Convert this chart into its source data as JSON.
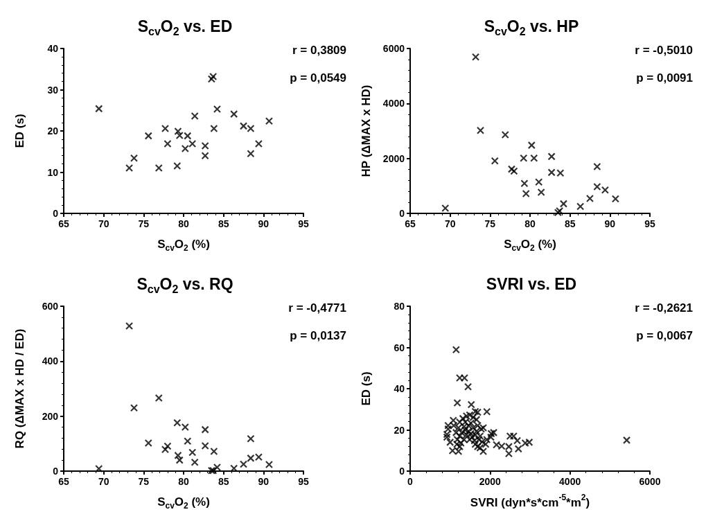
{
  "chart_data": [
    {
      "type": "scatter",
      "title": "S$_{cv}$O$_{2}$ vs. ED",
      "xlabel": "S$_{cv}$O$_{2}$ (%)",
      "ylabel": "ED (s)",
      "xlim": [
        65,
        95
      ],
      "xticks": [
        65,
        70,
        75,
        80,
        85,
        90,
        95
      ],
      "ylim": [
        0,
        40
      ],
      "yticks": [
        0,
        10,
        20,
        30,
        40
      ],
      "marker": "cross",
      "annotations": [
        "r = 0,3809",
        "p = 0,0549"
      ],
      "series": [
        {
          "color": "#000000",
          "x": [
            69.4,
            73.2,
            73.8,
            75.6,
            76.9,
            77.7,
            78.0,
            79.2,
            79.3,
            79.5,
            80.2,
            80.5,
            81.1,
            81.4,
            82.7,
            82.7,
            83.5,
            83.7,
            83.8,
            84.2,
            86.3,
            87.5,
            88.4,
            88.4,
            89.4,
            90.7
          ],
          "values": [
            25.4,
            11.0,
            13.4,
            18.8,
            11.0,
            20.6,
            16.9,
            11.5,
            19.9,
            18.9,
            15.7,
            18.8,
            16.9,
            23.6,
            16.4,
            14.0,
            32.6,
            33.2,
            20.6,
            25.3,
            24.1,
            21.2,
            20.6,
            14.5,
            16.9,
            22.4
          ]
        }
      ]
    },
    {
      "type": "scatter",
      "title": "S$_{cv}$O$_{2}$ vs. HP",
      "xlabel": "S$_{cv}$O$_{2}$ (%)",
      "ylabel": "HP (ΔMAX x HD)",
      "xlim": [
        65,
        95
      ],
      "xticks": [
        65,
        70,
        75,
        80,
        85,
        90,
        95
      ],
      "ylim": [
        0,
        6000
      ],
      "yticks": [
        0,
        2000,
        4000,
        6000
      ],
      "marker": "cross",
      "annotations": [
        "r = -0,5010",
        "p = 0,0091"
      ],
      "series": [
        {
          "color": "#000000",
          "x": [
            69.4,
            73.2,
            73.8,
            75.6,
            76.9,
            77.7,
            78.0,
            79.2,
            79.3,
            79.5,
            80.2,
            80.5,
            81.1,
            81.4,
            82.7,
            82.7,
            83.5,
            83.7,
            83.8,
            84.2,
            86.3,
            87.5,
            88.4,
            88.4,
            89.4,
            90.7
          ],
          "values": [
            190,
            5690,
            3020,
            1910,
            2860,
            1610,
            1540,
            2010,
            1090,
            720,
            2480,
            2010,
            1140,
            770,
            2070,
            1490,
            30,
            90,
            1470,
            350,
            250,
            540,
            1700,
            970,
            850,
            530
          ]
        }
      ]
    },
    {
      "type": "scatter",
      "title": "S$_{cv}$O$_{2}$ vs. RQ",
      "xlabel": "S$_{cv}$O$_{2}$ (%)",
      "ylabel": "RQ (ΔMAX x HD / ED)",
      "xlim": [
        65,
        95
      ],
      "xticks": [
        65,
        70,
        75,
        80,
        85,
        90,
        95
      ],
      "ylim": [
        0,
        600
      ],
      "yticks": [
        0,
        200,
        400,
        600
      ],
      "marker": "cross",
      "annotations": [
        "r = -0,4771",
        "p = 0,0137"
      ],
      "series": [
        {
          "color": "#000000",
          "x": [
            69.4,
            73.2,
            73.8,
            75.6,
            76.9,
            77.7,
            78.0,
            79.2,
            79.3,
            79.5,
            80.2,
            80.5,
            81.1,
            81.4,
            82.7,
            82.7,
            83.5,
            83.7,
            83.8,
            84.2,
            86.3,
            87.5,
            88.4,
            88.4,
            89.4,
            90.7
          ],
          "values": [
            9,
            528,
            230,
            102,
            266,
            79,
            91,
            176,
            57,
            40,
            160,
            109,
            68,
            32,
            151,
            92,
            2,
            2,
            72,
            14,
            10,
            25,
            118,
            47,
            51,
            24
          ]
        }
      ]
    },
    {
      "type": "scatter",
      "title": "SVRI vs. ED",
      "xlabel": "SVRI (dyn*s*cm$^{-5}$*m$^{2}$)",
      "ylabel": "ED (s)",
      "xlim": [
        0,
        6000
      ],
      "xticks": [
        0,
        2000,
        4000,
        6000
      ],
      "ylim": [
        0,
        80
      ],
      "yticks": [
        0,
        20,
        40,
        60,
        80
      ],
      "marker": "cross",
      "annotations": [
        "r = -0,2621",
        "p = 0,0067"
      ],
      "series": [
        {
          "color": "#000000",
          "x": [
            1150,
            1240,
            1360,
            1450,
            1180,
            1530,
            1920,
            1630,
            1690,
            1080,
            950,
            950,
            920,
            920,
            1000,
            1060,
            1210,
            1240,
            1150,
            1180,
            1240,
            1320,
            1410,
            1490,
            1580,
            1660,
            1350,
            1460,
            1580,
            1690,
            1780,
            1830,
            1290,
            1410,
            1520,
            1630,
            1750,
            1350,
            1490,
            1610,
            1720,
            1800,
            1890,
            1270,
            1630,
            1750,
            1830,
            1690,
            1920,
            2030,
            2090,
            2020,
            2160,
            2290,
            2470,
            2470,
            2500,
            2590,
            2680,
            2710,
            2880,
            2980,
            1090,
            1210,
            1240,
            1170,
            1380,
            1460,
            1520,
            1380,
            1550,
            1660,
            5420
          ],
          "values": [
            58.9,
            45.2,
            45.2,
            40.9,
            33.1,
            32.3,
            28.8,
            28.9,
            28.6,
            24.6,
            22.1,
            20.4,
            17.8,
            16.5,
            14.0,
            9.9,
            9.6,
            11.9,
            18.7,
            15.3,
            23.8,
            25.5,
            26.7,
            27.2,
            26.1,
            25.0,
            21.6,
            22.1,
            21.0,
            22.1,
            20.4,
            21.0,
            18.7,
            17.6,
            18.2,
            17.6,
            17.0,
            15.3,
            15.3,
            14.8,
            15.3,
            14.2,
            13.0,
            13.6,
            13.0,
            11.3,
            9.6,
            11.9,
            15.3,
            18.2,
            18.7,
            16.5,
            12.8,
            12.1,
            11.9,
            8.5,
            17.0,
            17.0,
            14.8,
            10.8,
            13.6,
            14.0,
            22.1,
            21.0,
            17.0,
            13.0,
            19.9,
            19.3,
            23.3,
            23.8,
            16.5,
            19.3,
            15.0
          ]
        }
      ]
    }
  ]
}
